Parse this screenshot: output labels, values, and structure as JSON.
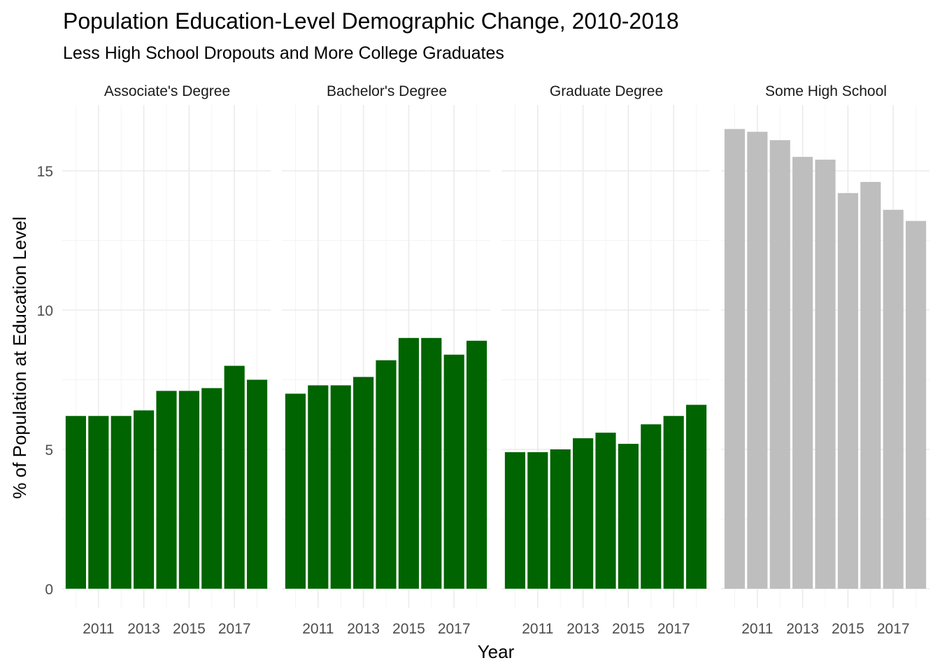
{
  "chart_data": {
    "type": "bar",
    "title": "Population Education-Level Demographic Change, 2010-2018",
    "subtitle": "Less High School Dropouts and More College Graduates",
    "xlabel": "Year",
    "ylabel": "% of Population at Education Level",
    "x": [
      2010,
      2011,
      2012,
      2013,
      2014,
      2015,
      2016,
      2017,
      2018
    ],
    "x_tick_labels": [
      "2011",
      "2013",
      "2015",
      "2017"
    ],
    "x_ticks": [
      2011,
      2013,
      2015,
      2017
    ],
    "y_ticks": [
      0,
      5,
      10,
      15
    ],
    "y_tick_labels": [
      "0",
      "5",
      "10",
      "15"
    ],
    "ylim": [
      0,
      17
    ],
    "grid": true,
    "legend": "none",
    "facets": [
      {
        "name": "Associate's Degree",
        "color": "#006400",
        "values": [
          6.2,
          6.2,
          6.2,
          6.4,
          7.1,
          7.1,
          7.2,
          8.0,
          7.5
        ]
      },
      {
        "name": "Bachelor's Degree",
        "color": "#006400",
        "values": [
          7.0,
          7.3,
          7.3,
          7.6,
          8.2,
          9.0,
          9.0,
          8.4,
          8.9
        ]
      },
      {
        "name": "Graduate Degree",
        "color": "#006400",
        "values": [
          4.9,
          4.9,
          5.0,
          5.4,
          5.6,
          5.2,
          5.9,
          6.2,
          6.6
        ]
      },
      {
        "name": "Some High School",
        "color": "#bebebe",
        "values": [
          16.5,
          16.4,
          16.1,
          15.5,
          15.4,
          14.2,
          14.6,
          13.6,
          13.2
        ]
      }
    ]
  }
}
